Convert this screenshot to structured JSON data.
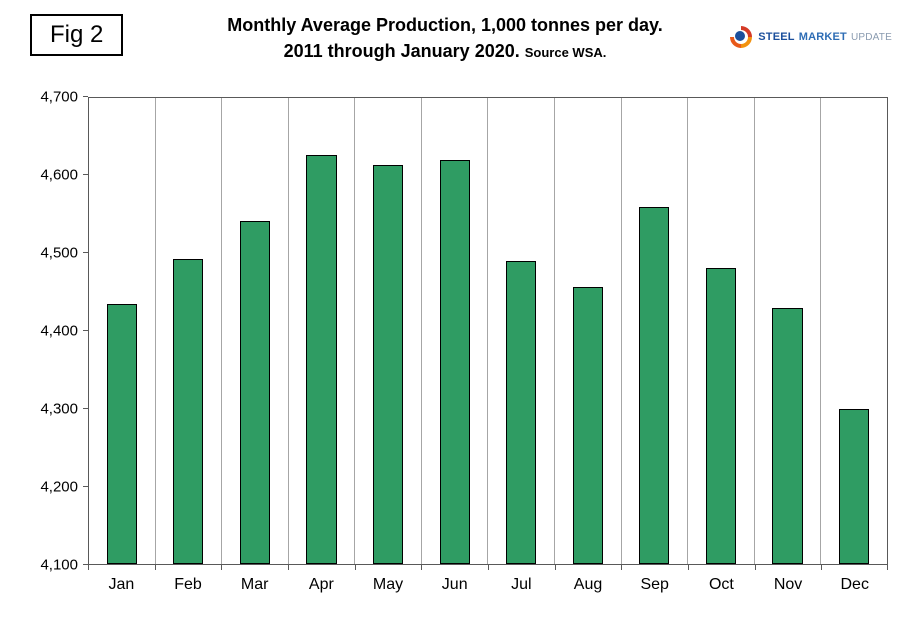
{
  "figure_label": "Fig 2",
  "title_line1": "Monthly Average Production, 1,000 tonnes per day.",
  "title_line2": "2011 through January 2020.",
  "title_source": "Source WSA.",
  "logo": {
    "steel": "STEEL",
    "market": "MARKET",
    "update": "UPDATE"
  },
  "chart_data": {
    "type": "bar",
    "title": "Monthly Average Production, 1,000 tonnes per day. 2011 through January 2020.",
    "source": "Source WSA.",
    "categories": [
      "Jan",
      "Feb",
      "Mar",
      "Apr",
      "May",
      "Jun",
      "Jul",
      "Aug",
      "Sep",
      "Oct",
      "Nov",
      "Dec"
    ],
    "values": [
      4435,
      4493,
      4542,
      4627,
      4614,
      4620,
      4490,
      4457,
      4560,
      4481,
      4430,
      4300
    ],
    "ylim": [
      4100,
      4700
    ],
    "ytick_step": 100,
    "ytick_labels": [
      "4,100",
      "4,200",
      "4,300",
      "4,400",
      "4,500",
      "4,600",
      "4,700"
    ],
    "grid": "vertical-only",
    "legend": "none",
    "bar_color": "#2f9c63",
    "bar_border_color": "#000000",
    "gridline_color": "#a6a6a6"
  }
}
